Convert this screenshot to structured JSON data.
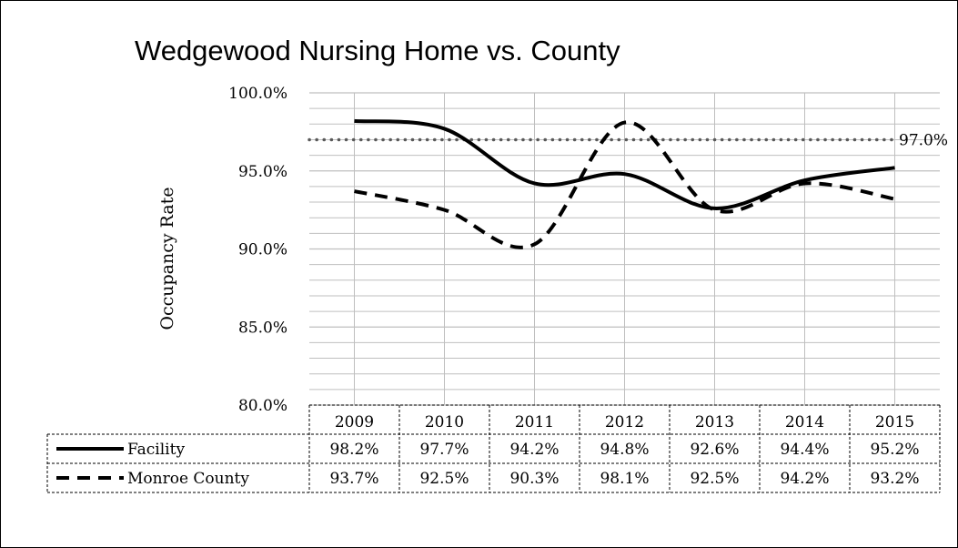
{
  "chart_data": {
    "type": "line",
    "title": "Wedgewood Nursing Home vs. County",
    "ylabel": "Occupancy Rate",
    "xlabel": "",
    "categories": [
      "2009",
      "2010",
      "2011",
      "2012",
      "2013",
      "2014",
      "2015"
    ],
    "ylim": [
      80,
      100
    ],
    "yticks": [
      80,
      85,
      90,
      95,
      100
    ],
    "ytick_labels": [
      "80.0%",
      "85.0%",
      "90.0%",
      "95.0%",
      "100.0%"
    ],
    "grid": true,
    "series": [
      {
        "name": "Facility",
        "style": "solid",
        "values": [
          98.2,
          97.7,
          94.2,
          94.8,
          92.6,
          94.4,
          95.2
        ],
        "labels": [
          "98.2%",
          "97.7%",
          "94.2%",
          "94.8%",
          "92.6%",
          "94.4%",
          "95.2%"
        ]
      },
      {
        "name": "Monroe County",
        "style": "dashed",
        "values": [
          93.7,
          92.5,
          90.3,
          98.1,
          92.5,
          94.2,
          93.2
        ],
        "labels": [
          "93.7%",
          "92.5%",
          "90.3%",
          "98.1%",
          "92.5%",
          "94.2%",
          "93.2%"
        ]
      }
    ],
    "reference_line": {
      "value": 97.0,
      "label": "97.0%",
      "style": "dotted",
      "color": "#595959"
    },
    "legend": "data-table",
    "colors": {
      "line": "#000000",
      "grid": "#bfbfbf",
      "reference": "#595959"
    }
  }
}
